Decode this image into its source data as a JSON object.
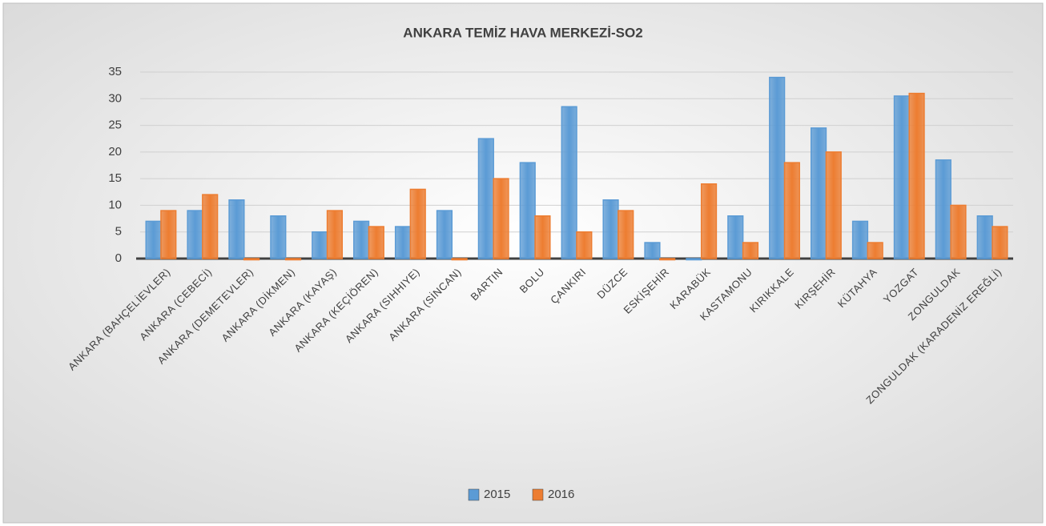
{
  "chart_data": {
    "type": "bar",
    "title": "ANKARA TEMİZ HAVA MERKEZİ-SO2",
    "categories": [
      "ANKARA (BAHÇELİEVLER)",
      "ANKARA (CEBECİ)",
      "ANKARA (DEMETEVLER)",
      "ANKARA (DİKMEN)",
      "ANKARA (KAYAŞ)",
      "ANKARA (KEÇİÖREN)",
      "ANKARA (SIHHIYE)",
      "ANKARA (SİNCAN)",
      "BARTIN",
      "BOLU",
      "ÇANKIRI",
      "DÜZCE",
      "ESKİŞEHİR",
      "KARABÜK",
      "KASTAMONU",
      "KIRIKKALE",
      "KIRŞEHİR",
      "KÜTAHYA",
      "YOZGAT",
      "ZONGULDAK",
      "ZONGULDAK (KARADENİZ EREĞLİ)"
    ],
    "series": [
      {
        "name": "2015",
        "color": "#5b9bd5",
        "values": [
          7,
          9,
          11,
          8,
          5,
          7,
          6,
          9,
          22.5,
          18,
          28.5,
          11,
          3,
          0,
          8,
          34,
          24.5,
          7,
          30.5,
          18.5,
          8
        ]
      },
      {
        "name": "2016",
        "color": "#ed7d31",
        "values": [
          9,
          12,
          0,
          0,
          9,
          6,
          13,
          0,
          15,
          8,
          5,
          9,
          0,
          14,
          3,
          18,
          20,
          3,
          31,
          10,
          6
        ]
      }
    ],
    "ylim": [
      0,
      35
    ],
    "yticks": [
      0,
      5,
      10,
      15,
      20,
      25,
      30,
      35
    ],
    "grid": true,
    "legend": "bottom"
  }
}
